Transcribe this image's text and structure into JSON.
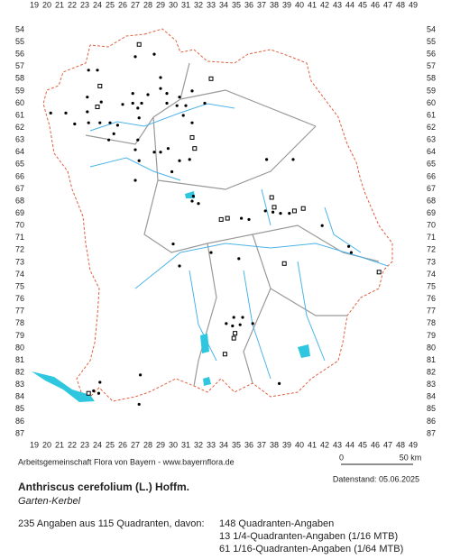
{
  "grid": {
    "columns": [
      19,
      20,
      21,
      22,
      23,
      24,
      25,
      26,
      27,
      28,
      29,
      30,
      31,
      32,
      33,
      34,
      35,
      36,
      37,
      38,
      39,
      40,
      41,
      42,
      43,
      44,
      45,
      46,
      47,
      48,
      49
    ],
    "rows": [
      54,
      55,
      56,
      57,
      58,
      59,
      60,
      61,
      62,
      63,
      64,
      65,
      66,
      67,
      68,
      69,
      70,
      71,
      72,
      73,
      74,
      75,
      76,
      77,
      78,
      79,
      80,
      81,
      82,
      83,
      84,
      85,
      86,
      87
    ]
  },
  "dots": [
    [
      27,
      56.2
    ],
    [
      28.5,
      56
    ],
    [
      24,
      57.3
    ],
    [
      23.3,
      57.3
    ],
    [
      29,
      57.9
    ],
    [
      29,
      58.8
    ],
    [
      31.5,
      59
    ],
    [
      26.8,
      59.2
    ],
    [
      28,
      59.3
    ],
    [
      29.5,
      59.2
    ],
    [
      30.5,
      59.5
    ],
    [
      23.2,
      59.5
    ],
    [
      24.3,
      59.9
    ],
    [
      26.8,
      60
    ],
    [
      27.5,
      60
    ],
    [
      26,
      60.1
    ],
    [
      29.5,
      60
    ],
    [
      30.3,
      60.2
    ],
    [
      31,
      60.2
    ],
    [
      32.5,
      60
    ],
    [
      20.3,
      60.8
    ],
    [
      21.5,
      60.8
    ],
    [
      23.2,
      60.7
    ],
    [
      27.2,
      60.4
    ],
    [
      27.3,
      61.2
    ],
    [
      30.8,
      61
    ],
    [
      23.3,
      61.6
    ],
    [
      24.2,
      61.6
    ],
    [
      25,
      61.6
    ],
    [
      25.6,
      61.8
    ],
    [
      22.2,
      61.7
    ],
    [
      31.5,
      61.6
    ],
    [
      25.3,
      62.5
    ],
    [
      24.9,
      63
    ],
    [
      27.2,
      63
    ],
    [
      27,
      63.8
    ],
    [
      29,
      64
    ],
    [
      29.6,
      63.7
    ],
    [
      28.5,
      64
    ],
    [
      27.3,
      64.7
    ],
    [
      30.5,
      64.7
    ],
    [
      31.3,
      64.6
    ],
    [
      37.4,
      64.6
    ],
    [
      39.5,
      64.6
    ],
    [
      29.9,
      65.6
    ],
    [
      27,
      66.3
    ],
    [
      31.6,
      67.6
    ],
    [
      32,
      68.2
    ],
    [
      31.5,
      68
    ],
    [
      37.3,
      68.8
    ],
    [
      37.9,
      68.9
    ],
    [
      38.5,
      69
    ],
    [
      39.2,
      69
    ],
    [
      35.4,
      69.4
    ],
    [
      36,
      69.5
    ],
    [
      41.8,
      70
    ],
    [
      30,
      71.5
    ],
    [
      33,
      72.2
    ],
    [
      43.9,
      71.7
    ],
    [
      44.1,
      72.2
    ],
    [
      35.2,
      72.7
    ],
    [
      30.5,
      73.3
    ],
    [
      34.2,
      78
    ],
    [
      34.8,
      77.5
    ],
    [
      34.7,
      78.2
    ],
    [
      35.3,
      78.1
    ],
    [
      35.5,
      77.5
    ],
    [
      36.3,
      78
    ],
    [
      27.4,
      82.2
    ],
    [
      24.2,
      82.8
    ],
    [
      38.4,
      82.9
    ],
    [
      24.1,
      83.7
    ],
    [
      27.3,
      84.6
    ],
    [
      23.7,
      83.5
    ]
  ],
  "squares": [
    [
      27.3,
      55.2
    ],
    [
      33,
      58
    ],
    [
      24.2,
      58.6
    ],
    [
      24,
      60.3
    ],
    [
      31.5,
      62.8
    ],
    [
      31.7,
      63.7
    ],
    [
      37.8,
      67.7
    ],
    [
      38,
      68.5
    ],
    [
      39.6,
      68.8
    ],
    [
      40.3,
      68.6
    ],
    [
      33.8,
      69.5
    ],
    [
      34.3,
      69.4
    ],
    [
      38.8,
      73.1
    ],
    [
      46.3,
      73.8
    ],
    [
      34.9,
      78.8
    ],
    [
      34.8,
      79.2
    ],
    [
      34.1,
      80.5
    ],
    [
      23.3,
      83.7
    ]
  ],
  "credit": "Arbeitsgemeinschaft Flora von Bayern - www.bayernflora.de",
  "scale": {
    "start": "0",
    "end": "50 km"
  },
  "date": "Datenstand: 05.06.2025",
  "species": "Anthriscus cerefolium (L.) Hoffm.",
  "common_name": "Garten-Kerbel",
  "summary": "235 Angaben aus 115 Quadranten, davon:",
  "breakdown": [
    "148 Quadranten-Angaben",
    "13 1/4-Quadranten-Angaben (1/16 MTB)",
    "61 1/16-Quadranten-Angaben (1/64 MTB)"
  ]
}
